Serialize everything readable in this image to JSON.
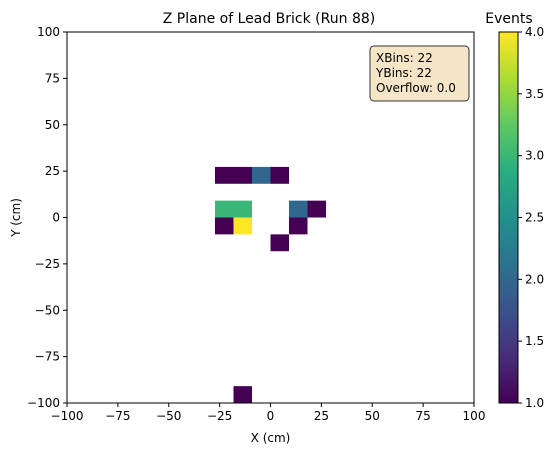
{
  "chart_data": {
    "type": "heatmap",
    "title": "Z Plane of Lead Brick (Run 88)",
    "xlabel": "X (cm)",
    "ylabel": "Y (cm)",
    "xlim": [
      -100,
      100
    ],
    "ylim": [
      -100,
      100
    ],
    "xticks": [
      "−100",
      "−75",
      "−50",
      "−25",
      "0",
      "25",
      "50",
      "75",
      "100"
    ],
    "yticks": [
      "−100",
      "−75",
      "−50",
      "−25",
      "0",
      "25",
      "50",
      "75",
      "100"
    ],
    "grid": false,
    "bins": {
      "x": 22,
      "y": 22
    },
    "cells": [
      {
        "x": -27.27,
        "y": 18.18,
        "value": 1
      },
      {
        "x": -18.18,
        "y": 18.18,
        "value": 1
      },
      {
        "x": -9.09,
        "y": 18.18,
        "value": 2
      },
      {
        "x": 0,
        "y": 18.18,
        "value": 1
      },
      {
        "x": -27.27,
        "y": 0,
        "value": 3
      },
      {
        "x": -18.18,
        "y": 0,
        "value": 3
      },
      {
        "x": 9.09,
        "y": 0,
        "value": 2
      },
      {
        "x": 18.18,
        "y": 0,
        "value": 1
      },
      {
        "x": -27.27,
        "y": -9.09,
        "value": 1
      },
      {
        "x": -18.18,
        "y": -9.09,
        "value": 4
      },
      {
        "x": 9.09,
        "y": -9.09,
        "value": 1
      },
      {
        "x": 0,
        "y": -18.18,
        "value": 1
      },
      {
        "x": -18.18,
        "y": -100,
        "value": 1
      }
    ],
    "colorbar": {
      "label": "Events",
      "min": 1.0,
      "max": 4.0,
      "ticks": [
        "1.0",
        "1.5",
        "2.0",
        "2.5",
        "3.0",
        "3.5",
        "4.0"
      ],
      "colormap": "viridis"
    },
    "stats_box": {
      "lines": [
        "XBins: 22",
        "YBins: 22",
        "Overflow: 0.0"
      ],
      "placement": "top-right"
    }
  }
}
